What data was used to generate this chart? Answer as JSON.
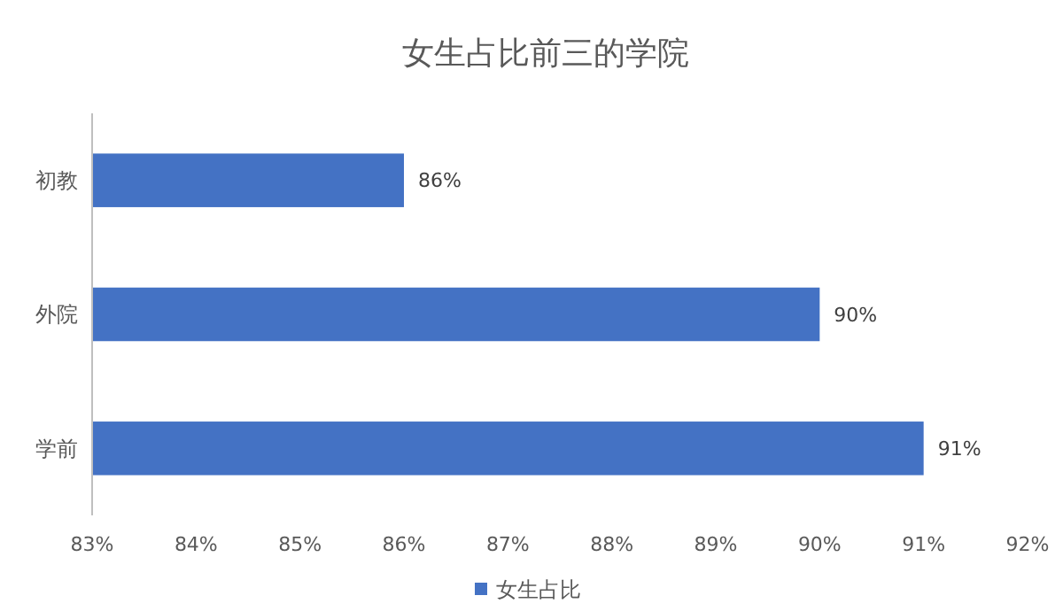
{
  "chart_data": {
    "type": "bar",
    "orientation": "horizontal",
    "title": "女生占比前三的学院",
    "categories": [
      "初教",
      "外院",
      "学前"
    ],
    "series": [
      {
        "name": "女生占比",
        "color": "#4472c4",
        "values": [
          86,
          90,
          91
        ],
        "value_labels": [
          "86%",
          "90%",
          "91%"
        ]
      }
    ],
    "xlim": [
      83,
      92
    ],
    "xticks": [
      {
        "value": 83,
        "label": "83%"
      },
      {
        "value": 84,
        "label": "84%"
      },
      {
        "value": 85,
        "label": "85%"
      },
      {
        "value": 86,
        "label": "86%"
      },
      {
        "value": 87,
        "label": "87%"
      },
      {
        "value": 88,
        "label": "88%"
      },
      {
        "value": 89,
        "label": "89%"
      },
      {
        "value": 90,
        "label": "90%"
      },
      {
        "value": 91,
        "label": "91%"
      },
      {
        "value": 92,
        "label": "92%"
      }
    ],
    "grid": false,
    "legend": "bottom"
  }
}
